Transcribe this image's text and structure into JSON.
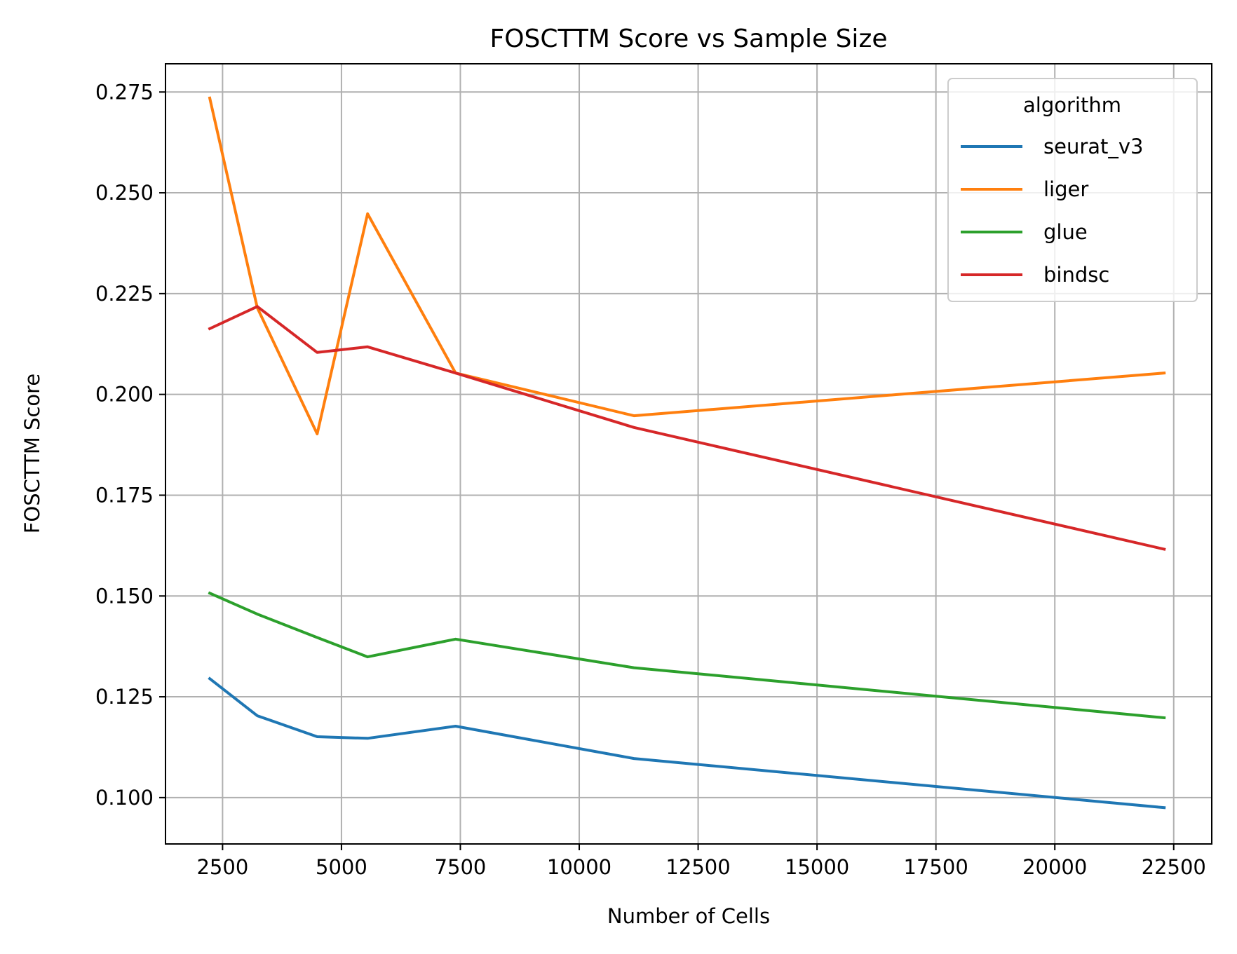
{
  "chart_data": {
    "type": "line",
    "title": "FOSCTTM Score vs Sample Size",
    "xlabel": "Number of Cells",
    "ylabel": "FOSCTTM Score",
    "xlim": [
      1300,
      23300
    ],
    "ylim": [
      0.0885,
      0.282
    ],
    "x_ticks": [
      2500,
      5000,
      7500,
      10000,
      12500,
      15000,
      17500,
      20000,
      22500
    ],
    "x_tick_labels": [
      "2500",
      "5000",
      "7500",
      "10000",
      "12500",
      "15000",
      "17500",
      "20000",
      "22500"
    ],
    "y_ticks": [
      0.1,
      0.125,
      0.15,
      0.175,
      0.2,
      0.225,
      0.25,
      0.275
    ],
    "y_tick_labels": [
      "0.100",
      "0.125",
      "0.150",
      "0.175",
      "0.200",
      "0.225",
      "0.250",
      "0.275"
    ],
    "grid": true,
    "legend": {
      "title": "algorithm",
      "placement": "top-right"
    },
    "x": [
      2230,
      3230,
      4490,
      5550,
      7400,
      11150,
      22300
    ],
    "series": [
      {
        "name": "seurat_v3",
        "color": "#1f77b4",
        "values": [
          0.1295,
          0.1203,
          0.1151,
          0.1147,
          0.1177,
          0.1097,
          0.0975
        ]
      },
      {
        "name": "liger",
        "color": "#ff7f0e",
        "values": [
          0.2735,
          0.2215,
          0.1902,
          0.2448,
          0.2053,
          0.1947,
          0.2053
        ]
      },
      {
        "name": "glue",
        "color": "#2ca02c",
        "values": [
          0.1507,
          0.1455,
          0.1397,
          0.1349,
          0.1393,
          0.1322,
          0.1198
        ]
      },
      {
        "name": "bindsc",
        "color": "#d62728",
        "values": [
          0.2163,
          0.2218,
          0.2104,
          0.2118,
          0.2053,
          0.1918,
          0.1616
        ]
      }
    ]
  }
}
